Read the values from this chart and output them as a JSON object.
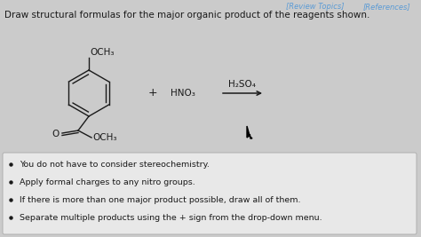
{
  "title_text": "Draw structural formulas for the major organic product of the reagents shown.",
  "header_right1": "[Review Topics]",
  "header_right2": "[References]",
  "header_right1_color": "#5b9bd5",
  "header_right2_color": "#5b9bd5",
  "reagent_plus": "+",
  "reagent1": "HNO₃",
  "reagent2": "H₂SO₄",
  "och3_top": "OCH₃",
  "och3_bottom": "OCH₃",
  "carbonyl_o": "O",
  "bullet_points": [
    "You do not have to consider stereochemistry.",
    "Apply formal charges to any nitro groups.",
    "If there is more than one major product possible, draw all of them.",
    "Separate multiple products using the + sign from the drop-down menu."
  ],
  "bg_color": "#cbcbcb",
  "box_facecolor": "#e8e8e8",
  "box_edgecolor": "#b0b0b0",
  "text_color": "#1a1a1a",
  "line_color": "#1a1a1a",
  "font_size_title": 7.5,
  "font_size_body": 6.8,
  "font_size_chem": 7.5,
  "font_size_header": 6.0
}
